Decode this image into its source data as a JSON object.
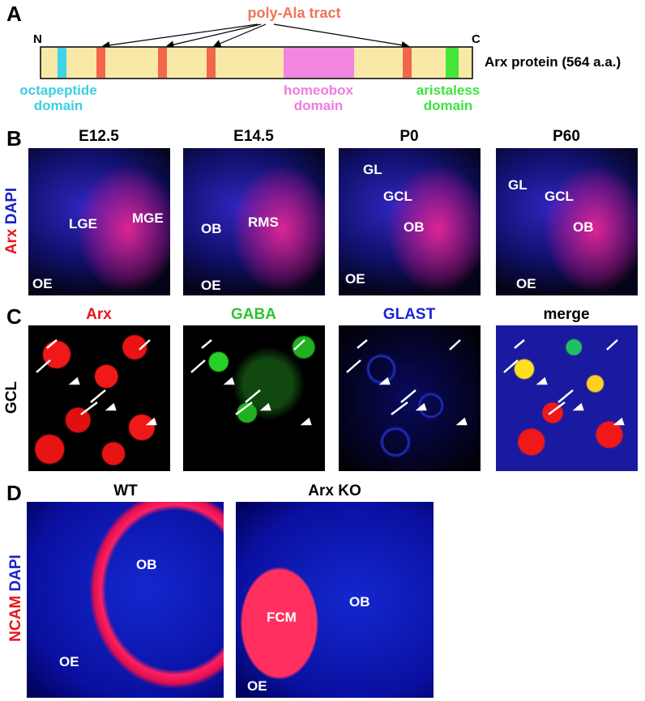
{
  "panel_a": {
    "label": "A",
    "tract_label": "poly-Ala tract",
    "n_terminus": "N",
    "c_terminus": "C",
    "protein_label": "Arx protein (564 a.a.)",
    "domains": [
      {
        "lines": [
          "octapeptide",
          "domain"
        ]
      },
      {
        "lines": [
          "homeobox",
          "domain"
        ]
      },
      {
        "lines": [
          "aristaless",
          "domain"
        ]
      }
    ]
  },
  "panel_b": {
    "label": "B",
    "stain": [
      "Arx",
      "DAPI"
    ],
    "images": [
      {
        "title": "E12.5",
        "labels": [
          "LGE",
          "MGE",
          "OE"
        ]
      },
      {
        "title": "E14.5",
        "labels": [
          "OB",
          "RMS",
          "OE"
        ]
      },
      {
        "title": "P0",
        "labels": [
          "GL",
          "GCL",
          "OB",
          "OE"
        ]
      },
      {
        "title": "P60",
        "labels": [
          "GL",
          "GCL",
          "OB",
          "OE"
        ]
      }
    ]
  },
  "panel_c": {
    "label": "C",
    "region": "GCL",
    "images": [
      {
        "title": "Arx"
      },
      {
        "title": "GABA"
      },
      {
        "title": "GLAST"
      },
      {
        "title": "merge"
      }
    ]
  },
  "panel_d": {
    "label": "D",
    "stain": [
      "NCAM",
      "DAPI"
    ],
    "images": [
      {
        "title": "WT",
        "labels": [
          "OB",
          "OE"
        ]
      },
      {
        "title": "Arx KO",
        "labels": [
          "FCM",
          "OB",
          "OE"
        ]
      }
    ]
  }
}
